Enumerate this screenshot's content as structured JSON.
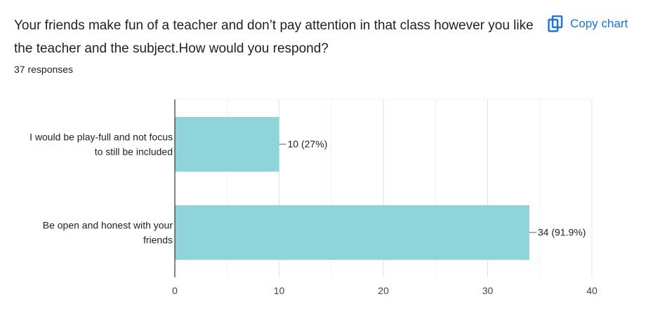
{
  "header": {
    "question": "Your friends make fun of a teacher and don’t pay attention in that class however you like the teacher and the subject.How would you respond?",
    "responses": "37 responses",
    "copy_label": "Copy chart",
    "copy_icon": "copy-icon"
  },
  "colors": {
    "bar": "#8fd3db",
    "accent": "#1a73e8",
    "grid": "#e0e0e0",
    "axis": "#333333",
    "text": "#202124"
  },
  "chart_data": {
    "type": "bar",
    "orientation": "horizontal",
    "categories": [
      [
        "I would be play-full and not focus",
        "to still be included"
      ],
      [
        "Be open and honest with your",
        "friends"
      ]
    ],
    "values": [
      10,
      34
    ],
    "data_labels": [
      "10 (27%)",
      "34 (91.9%)"
    ],
    "xlim": [
      0,
      40
    ],
    "xticks": [
      0,
      10,
      20,
      30,
      40
    ],
    "grid": true,
    "legend": "none"
  }
}
